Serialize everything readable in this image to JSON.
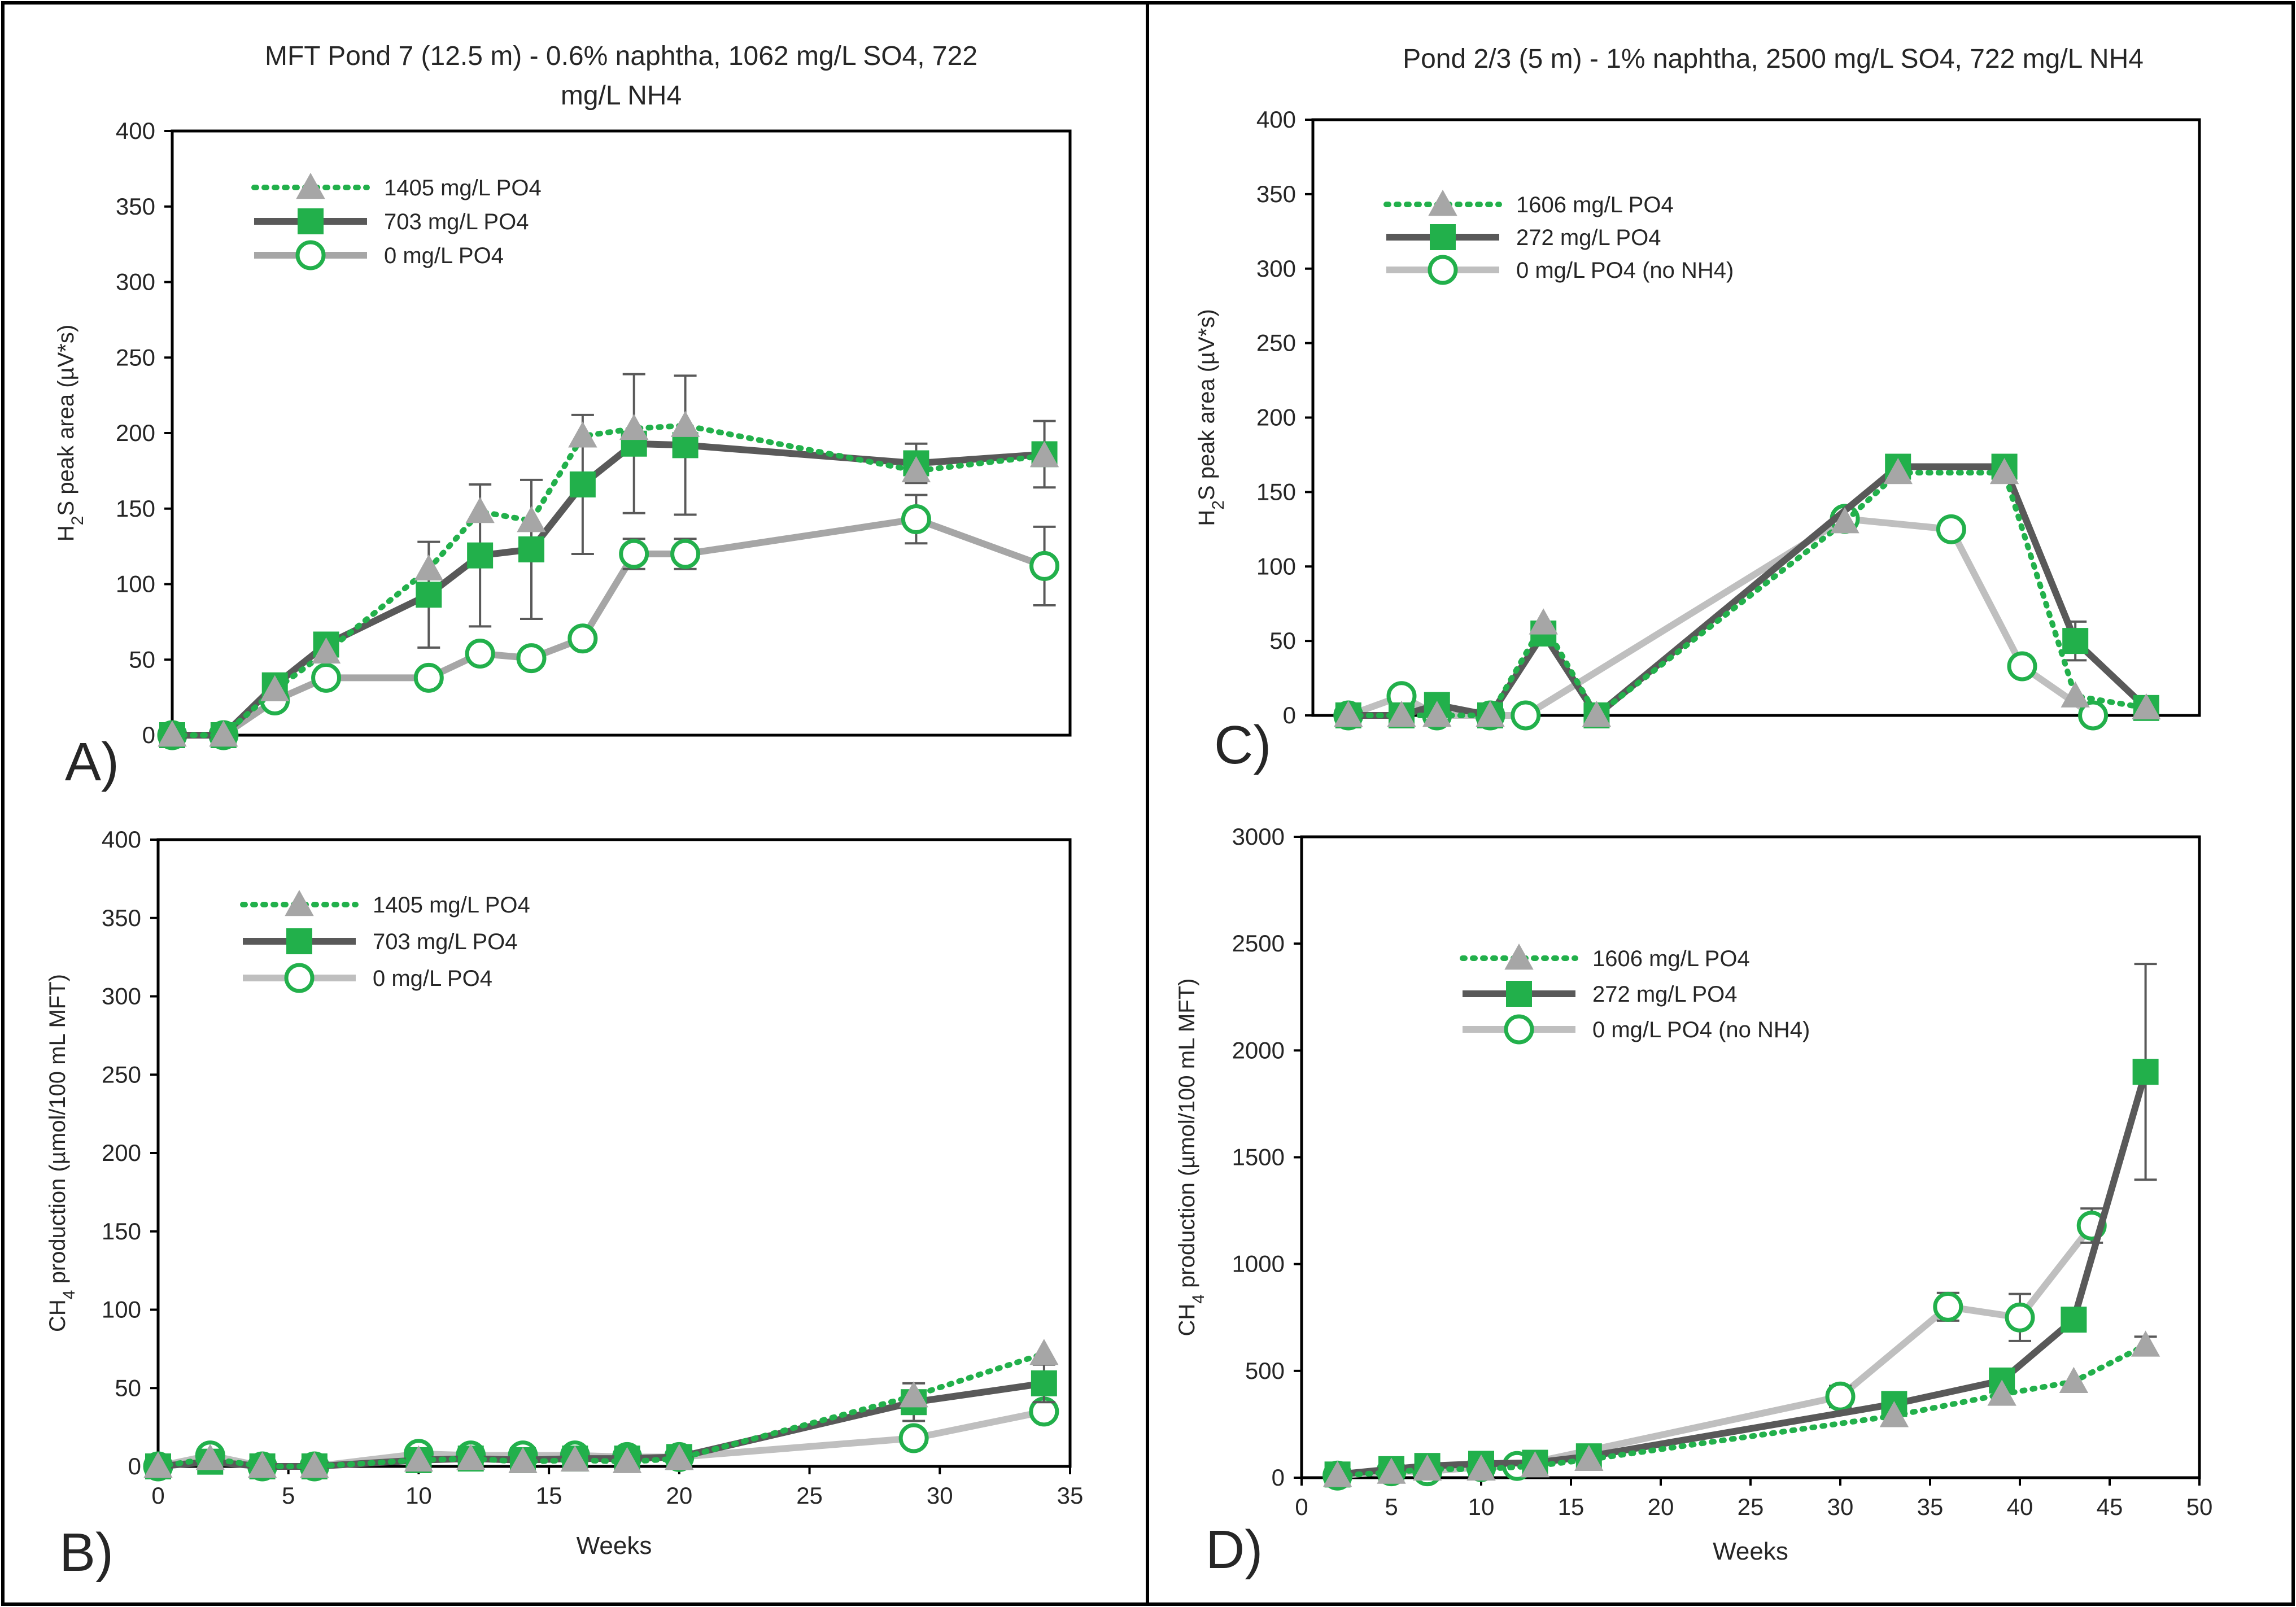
{
  "chart_data": [
    {
      "id": "A",
      "type": "line",
      "panel_label": "A)",
      "title": "MFT Pond 7 (12.5 m) - 0.6% naphtha, 1062 mg/L SO4, 722 mg/L NH4",
      "title_lines": [
        "MFT Pond 7 (12.5 m) - 0.6% naphtha, 1062 mg/L SO4, 722",
        "mg/L NH4"
      ],
      "ylabel": "H₂S peak area (µV*s)",
      "ylabel_main": "H",
      "ylabel_sub": "2",
      "ylabel_rest": "S peak area (µV*s)",
      "xlabel": "",
      "xlim": [
        0,
        35
      ],
      "ylim": [
        0,
        400
      ],
      "yticks": [
        "0",
        "50",
        "100",
        "150",
        "200",
        "250",
        "300",
        "350",
        "400"
      ],
      "ytick_values": [
        0,
        50,
        100,
        150,
        200,
        250,
        300,
        350,
        400
      ],
      "xticks": [],
      "xtick_values": [],
      "legend_position": "top-left",
      "series": [
        {
          "name": "1405 mg/L PO4",
          "style": "dotted-triangle",
          "x": [
            0,
            2,
            4,
            6,
            10,
            12,
            14,
            16,
            18,
            20,
            29,
            34
          ],
          "y": [
            0,
            0,
            30,
            55,
            110,
            148,
            142,
            198,
            203,
            205,
            175,
            185
          ],
          "err": [
            0,
            0,
            0,
            0,
            0,
            0,
            0,
            0,
            0,
            0,
            0,
            0
          ]
        },
        {
          "name": "703 mg/L PO4",
          "style": "solid-square",
          "x": [
            0,
            2,
            4,
            6,
            10,
            12,
            14,
            16,
            18,
            20,
            29,
            34
          ],
          "y": [
            0,
            0,
            33,
            60,
            93,
            119,
            123,
            166,
            193,
            192,
            180,
            186
          ],
          "err": [
            0,
            0,
            0,
            0,
            35,
            47,
            46,
            46,
            46,
            46,
            13,
            22
          ]
        },
        {
          "name": "0 mg/L PO4",
          "style": "solid-circle",
          "x": [
            0,
            2,
            4,
            6,
            10,
            12,
            14,
            16,
            18,
            20,
            29,
            34
          ],
          "y": [
            0,
            0,
            23,
            38,
            38,
            54,
            51,
            64,
            120,
            120,
            143,
            112
          ],
          "err": [
            0,
            0,
            0,
            0,
            0,
            0,
            0,
            0,
            10,
            10,
            16,
            26
          ]
        }
      ]
    },
    {
      "id": "B",
      "type": "line",
      "panel_label": "B)",
      "title": "",
      "title_lines": [],
      "ylabel": "CH₄ production (µmol/100 mL MFT)",
      "ylabel_main": "CH",
      "ylabel_sub": "4",
      "ylabel_rest": " production (µmol/100 mL MFT)",
      "xlabel": "Weeks",
      "xlim": [
        0,
        35
      ],
      "ylim": [
        0,
        400
      ],
      "yticks": [
        "0",
        "50",
        "100",
        "150",
        "200",
        "250",
        "300",
        "350",
        "400"
      ],
      "ytick_values": [
        0,
        50,
        100,
        150,
        200,
        250,
        300,
        350,
        400
      ],
      "xticks": [
        "0",
        "5",
        "10",
        "15",
        "20",
        "25",
        "30",
        "35"
      ],
      "xtick_values": [
        0,
        5,
        10,
        15,
        20,
        25,
        30,
        35
      ],
      "legend_position": "top-left",
      "series": [
        {
          "name": "1405 mg/L PO4",
          "style": "dotted-triangle",
          "x": [
            0,
            2,
            4,
            6,
            10,
            12,
            14,
            16,
            18,
            20,
            29,
            34
          ],
          "y": [
            0,
            5,
            0,
            0,
            4,
            5,
            3,
            4,
            3,
            5,
            45,
            72
          ],
          "err": [
            0,
            0,
            0,
            0,
            0,
            0,
            0,
            0,
            0,
            0,
            0,
            0
          ]
        },
        {
          "name": "703 mg/L PO4",
          "style": "solid-square",
          "x": [
            0,
            2,
            4,
            6,
            10,
            12,
            14,
            16,
            18,
            20,
            29,
            34
          ],
          "y": [
            0,
            3,
            0,
            0,
            4,
            5,
            4,
            5,
            5,
            6,
            41,
            53
          ],
          "err": [
            0,
            0,
            0,
            0,
            0,
            0,
            0,
            0,
            0,
            0,
            12,
            12
          ]
        },
        {
          "name": "0 mg/L PO4",
          "style": "light-circle",
          "x": [
            0,
            2,
            4,
            6,
            10,
            12,
            14,
            16,
            18,
            20,
            29,
            34
          ],
          "y": [
            0,
            7,
            0,
            0,
            8,
            7,
            7,
            7,
            6,
            6,
            18,
            35
          ],
          "err": [
            0,
            0,
            0,
            0,
            0,
            0,
            0,
            0,
            0,
            0,
            0,
            0
          ]
        }
      ]
    },
    {
      "id": "C",
      "type": "line",
      "panel_label": "C)",
      "title": "Pond 2/3 (5 m) - 1% naphtha, 2500 mg/L SO4, 722 mg/L NH4",
      "title_lines": [
        "Pond 2/3 (5 m) - 1% naphtha, 2500 mg/L SO4, 722 mg/L NH4"
      ],
      "ylabel": "H₂S peak area (µV*s)",
      "ylabel_main": "H",
      "ylabel_sub": "2",
      "ylabel_rest": "S peak area (µV*s)",
      "xlabel": "",
      "xlim": [
        0,
        50
      ],
      "ylim": [
        0,
        400
      ],
      "yticks": [
        "0",
        "50",
        "100",
        "150",
        "200",
        "250",
        "300",
        "350",
        "400"
      ],
      "ytick_values": [
        0,
        50,
        100,
        150,
        200,
        250,
        300,
        350,
        400
      ],
      "xticks": [],
      "xtick_values": [],
      "legend_position": "top-left",
      "series": [
        {
          "name": "1606 mg/L PO4",
          "style": "dotted-triangle",
          "x": [
            2,
            5,
            7,
            10,
            13,
            16,
            30,
            33,
            39,
            43,
            47
          ],
          "y": [
            0,
            0,
            0,
            0,
            62,
            0,
            130,
            163,
            163,
            13,
            5
          ],
          "err": [
            0,
            0,
            0,
            0,
            0,
            0,
            0,
            0,
            0,
            0,
            0
          ]
        },
        {
          "name": "272 mg/L PO4",
          "style": "solid-square",
          "x": [
            2,
            5,
            7,
            10,
            13,
            16,
            33,
            39,
            43,
            47
          ],
          "y": [
            0,
            0,
            7,
            0,
            55,
            0,
            167,
            167,
            50,
            5
          ],
          "err": [
            0,
            0,
            0,
            0,
            0,
            0,
            0,
            0,
            13,
            0
          ]
        },
        {
          "name": "0 mg/L PO4 (no NH4)",
          "style": "light-circle",
          "x": [
            2,
            5,
            7,
            10,
            12,
            30,
            36,
            40,
            44
          ],
          "y": [
            0,
            13,
            0,
            0,
            0,
            132,
            125,
            33,
            0
          ],
          "err": [
            0,
            0,
            0,
            0,
            0,
            0,
            0,
            0,
            0
          ]
        }
      ]
    },
    {
      "id": "D",
      "type": "line",
      "panel_label": "D)",
      "title": "",
      "title_lines": [],
      "ylabel": "CH₄ production (µmol/100 mL MFT)",
      "ylabel_main": "CH",
      "ylabel_sub": "4",
      "ylabel_rest": " production (µmol/100 mL MFT)",
      "xlabel": "Weeks",
      "xlim": [
        0,
        50
      ],
      "ylim": [
        0,
        3000
      ],
      "yticks": [
        "0",
        "500",
        "1000",
        "1500",
        "2000",
        "2500",
        "3000"
      ],
      "ytick_values": [
        0,
        500,
        1000,
        1500,
        2000,
        2500,
        3000
      ],
      "xticks": [
        "0",
        "5",
        "10",
        "15",
        "20",
        "25",
        "30",
        "35",
        "40",
        "45",
        "50"
      ],
      "xtick_values": [
        0,
        5,
        10,
        15,
        20,
        25,
        30,
        35,
        40,
        45,
        50
      ],
      "legend_position": "top-center",
      "series": [
        {
          "name": "1606 mg/L PO4",
          "style": "dotted-triangle",
          "x": [
            2,
            5,
            7,
            10,
            13,
            16,
            33,
            39,
            43,
            47
          ],
          "y": [
            10,
            25,
            40,
            40,
            55,
            85,
            290,
            390,
            450,
            620
          ],
          "err": [
            0,
            0,
            0,
            0,
            0,
            0,
            0,
            0,
            0,
            40
          ]
        },
        {
          "name": "272 mg/L PO4",
          "style": "solid-square",
          "x": [
            2,
            5,
            7,
            10,
            13,
            16,
            33,
            39,
            43,
            47
          ],
          "y": [
            15,
            40,
            55,
            65,
            70,
            100,
            345,
            455,
            740,
            1900
          ],
          "err": [
            0,
            0,
            0,
            0,
            0,
            0,
            0,
            0,
            0,
            505
          ]
        },
        {
          "name": "0 mg/L PO4 (no NH4)",
          "style": "light-circle",
          "x": [
            2,
            5,
            7,
            10,
            12,
            30,
            36,
            40,
            44
          ],
          "y": [
            10,
            30,
            30,
            50,
            55,
            380,
            800,
            750,
            1180
          ],
          "err": [
            0,
            0,
            0,
            0,
            0,
            50,
            65,
            110,
            80
          ]
        }
      ]
    }
  ]
}
